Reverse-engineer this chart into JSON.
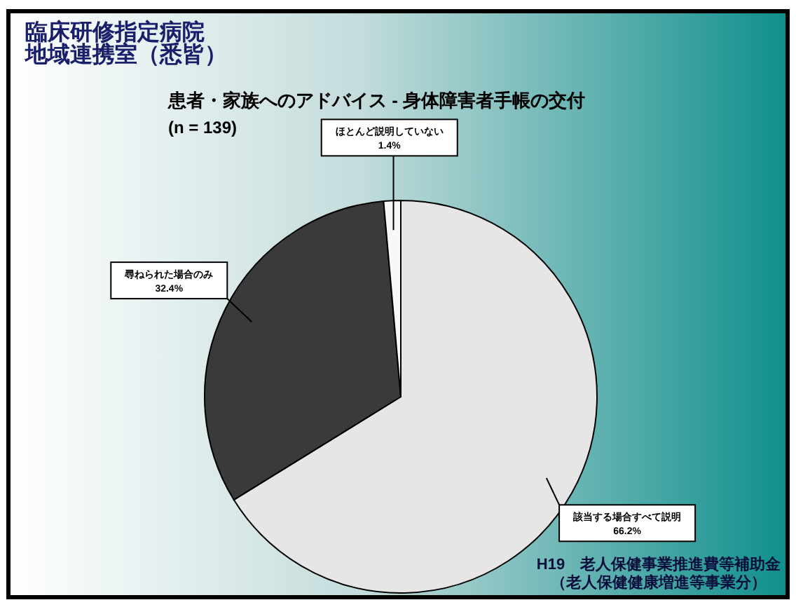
{
  "chart_data": {
    "type": "pie",
    "title": "患者・家族へのアドバイス - 身体障害者手帳の交付",
    "subtitle": "(n = 139)",
    "annotations": [
      "臨床研修指定病院",
      "地域連携室（悉皆）",
      "H19　老人保健事業推進費等補助金",
      "（老人保健健康増進等事業分）"
    ],
    "categories": [
      "該当する場合すべて説明",
      "尋ねられた場合のみ",
      "ほとんど説明していない"
    ],
    "values": [
      66.2,
      32.4,
      1.4
    ],
    "value_labels": [
      "66.2%",
      "32.4%",
      "1.4%"
    ],
    "colors": [
      "#e6e6e6",
      "#3a3a3a",
      "#f8f8f8"
    ]
  }
}
